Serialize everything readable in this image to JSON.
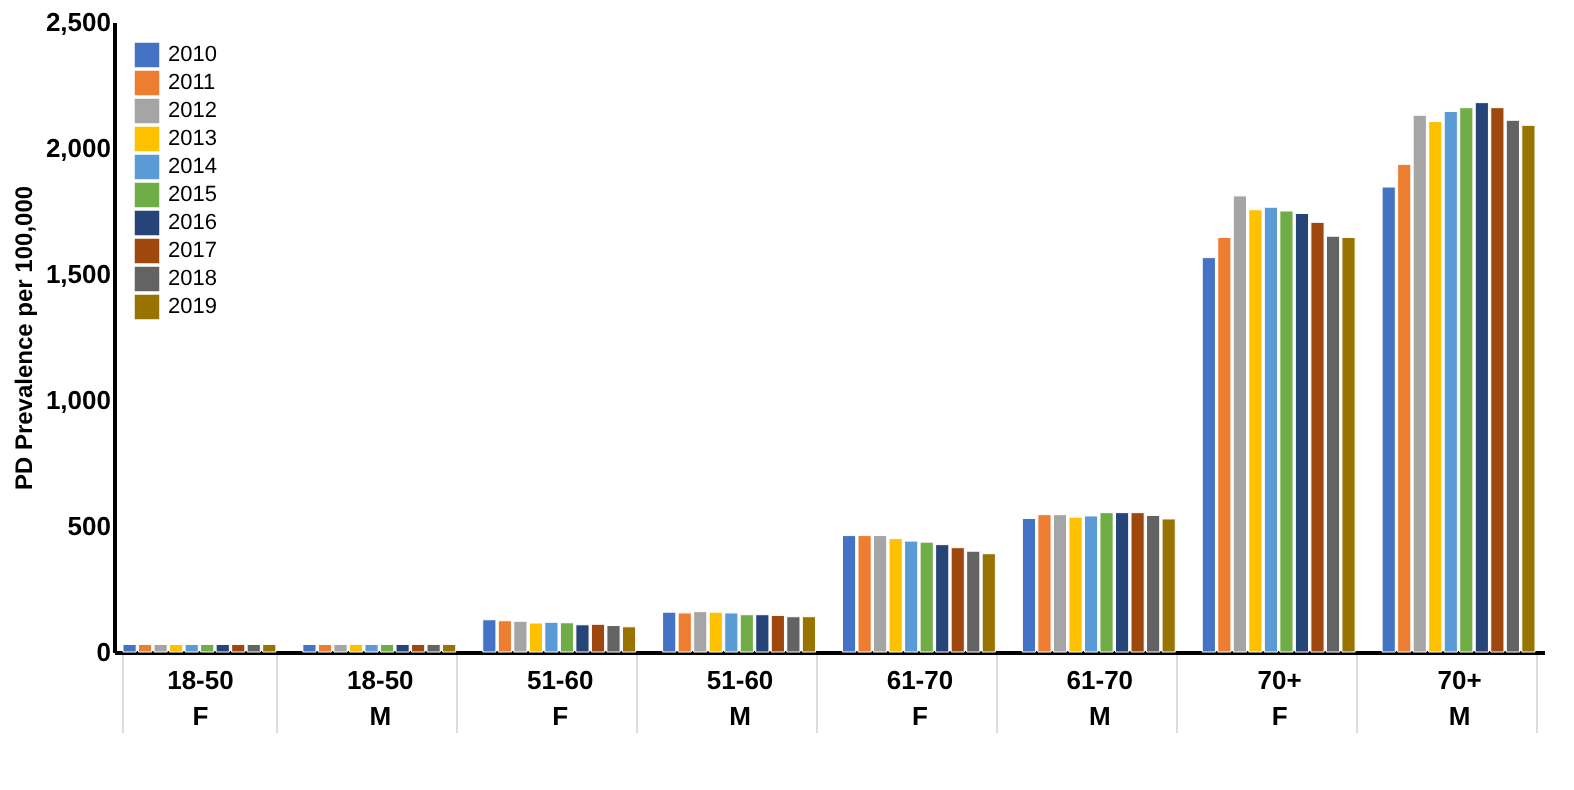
{
  "chart_data": {
    "type": "bar",
    "ylabel": "PD Prevalence per 100,000",
    "categories": [
      "18-50\nF",
      "18-50\nM",
      "51-60\nF",
      "51-60\nM",
      "61-70\nF",
      "61-70\nM",
      "70+\nF",
      "70+\nM"
    ],
    "series": [
      {
        "name": "2010",
        "color": "#4472c4",
        "values": [
          30,
          30,
          128,
          158,
          462,
          530,
          1565,
          1845
        ]
      },
      {
        "name": "2011",
        "color": "#ed7d31",
        "values": [
          30,
          30,
          124,
          155,
          462,
          545,
          1645,
          1935
        ]
      },
      {
        "name": "2012",
        "color": "#a5a5a5",
        "values": [
          30,
          30,
          122,
          160,
          462,
          545,
          1810,
          2130
        ]
      },
      {
        "name": "2013",
        "color": "#ffc000",
        "values": [
          30,
          30,
          115,
          158,
          450,
          535,
          1755,
          2105
        ]
      },
      {
        "name": "2014",
        "color": "#5b9bd5",
        "values": [
          30,
          30,
          118,
          155,
          440,
          540,
          1765,
          2145
        ]
      },
      {
        "name": "2015",
        "color": "#70ad47",
        "values": [
          30,
          30,
          116,
          148,
          436,
          553,
          1750,
          2160
        ]
      },
      {
        "name": "2016",
        "color": "#264478",
        "values": [
          30,
          30,
          108,
          148,
          426,
          553,
          1740,
          2180
        ]
      },
      {
        "name": "2017",
        "color": "#9e480e",
        "values": [
          30,
          30,
          110,
          145,
          414,
          553,
          1705,
          2160
        ]
      },
      {
        "name": "2018",
        "color": "#636363",
        "values": [
          30,
          30,
          105,
          140,
          400,
          542,
          1650,
          2110
        ]
      },
      {
        "name": "2019",
        "color": "#997300",
        "values": [
          30,
          30,
          100,
          140,
          390,
          528,
          1645,
          2090
        ]
      }
    ],
    "ylim": [
      0,
      2500
    ],
    "yticks": [
      0,
      500,
      {
        "value": 1000,
        "label": "1,000"
      },
      {
        "value": 1500,
        "label": "1,500"
      },
      {
        "value": 2000,
        "label": "2,000"
      },
      {
        "value": 2500,
        "label": "2,500"
      }
    ],
    "grid": false,
    "legend": "top left"
  }
}
